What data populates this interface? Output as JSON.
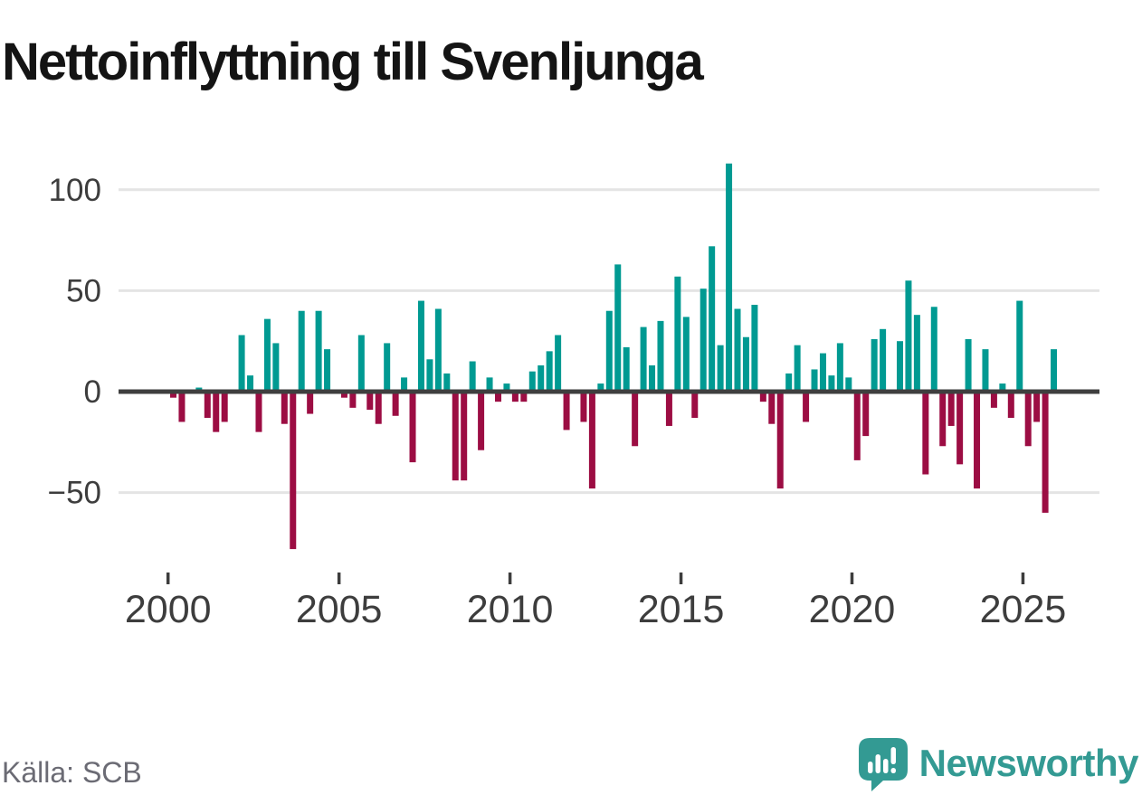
{
  "title": "Nettoinflyttning till Svenljunga",
  "footer": {
    "source": "Källa: SCB",
    "brand": "Newsworthy"
  },
  "icons": {
    "logo": "newsworthy-speech-bubble-bar-chart-icon"
  },
  "colors": {
    "positive": "#009a92",
    "negative": "#9c0d43",
    "grid": "#e4e4e4",
    "zero_line": "#3f3f3f",
    "axis_text": "#3d3d3d",
    "title_text": "#141414",
    "source_text": "#6b6b74",
    "brand_teal": "#339a93"
  },
  "chart_data": {
    "type": "bar",
    "title": "Nettoinflyttning till Svenljunga",
    "xlabel": "",
    "ylabel": "",
    "x_unit": "quarter",
    "grid": true,
    "legend": "none",
    "ylim": [
      -80,
      115
    ],
    "yticks": [
      100,
      50,
      0,
      -50
    ],
    "xticks": [
      2000,
      2005,
      2010,
      2015,
      2020,
      2025
    ],
    "categories": [
      "2000Q1",
      "2000Q2",
      "2000Q3",
      "2000Q4",
      "2001Q1",
      "2001Q2",
      "2001Q3",
      "2001Q4",
      "2002Q1",
      "2002Q2",
      "2002Q3",
      "2002Q4",
      "2003Q1",
      "2003Q2",
      "2003Q3",
      "2003Q4",
      "2004Q1",
      "2004Q2",
      "2004Q3",
      "2004Q4",
      "2005Q1",
      "2005Q2",
      "2005Q3",
      "2005Q4",
      "2006Q1",
      "2006Q2",
      "2006Q3",
      "2006Q4",
      "2007Q1",
      "2007Q2",
      "2007Q3",
      "2007Q4",
      "2008Q1",
      "2008Q2",
      "2008Q3",
      "2008Q4",
      "2009Q1",
      "2009Q2",
      "2009Q3",
      "2009Q4",
      "2010Q1",
      "2010Q2",
      "2010Q3",
      "2010Q4",
      "2011Q1",
      "2011Q2",
      "2011Q3",
      "2011Q4",
      "2012Q1",
      "2012Q2",
      "2012Q3",
      "2012Q4",
      "2013Q1",
      "2013Q2",
      "2013Q3",
      "2013Q4",
      "2014Q1",
      "2014Q2",
      "2014Q3",
      "2014Q4",
      "2015Q1",
      "2015Q2",
      "2015Q3",
      "2015Q4",
      "2016Q1",
      "2016Q2",
      "2016Q3",
      "2016Q4",
      "2017Q1",
      "2017Q2",
      "2017Q3",
      "2017Q4",
      "2018Q1",
      "2018Q2",
      "2018Q3",
      "2018Q4",
      "2019Q1",
      "2019Q2",
      "2019Q3",
      "2019Q4",
      "2020Q1",
      "2020Q2",
      "2020Q3",
      "2020Q4",
      "2021Q1",
      "2021Q2",
      "2021Q3",
      "2021Q4",
      "2022Q1",
      "2022Q2",
      "2022Q3",
      "2022Q4",
      "2023Q1",
      "2023Q2",
      "2023Q3",
      "2023Q4",
      "2024Q1",
      "2024Q2",
      "2024Q3",
      "2024Q4",
      "2025Q1",
      "2025Q2",
      "2025Q3",
      "2025Q4"
    ],
    "values": [
      -3,
      -15,
      0,
      2,
      -13,
      -20,
      -15,
      0,
      28,
      8,
      -20,
      36,
      24,
      -16,
      -78,
      40,
      -11,
      40,
      21,
      0,
      -3,
      -8,
      28,
      -9,
      -16,
      24,
      -12,
      7,
      -35,
      45,
      16,
      41,
      9,
      -44,
      -44,
      15,
      -29,
      7,
      -5,
      4,
      -5,
      -5,
      10,
      13,
      20,
      28,
      -19,
      0,
      -15,
      -48,
      4,
      40,
      63,
      22,
      -27,
      32,
      13,
      35,
      -17,
      57,
      37,
      -13,
      51,
      72,
      23,
      113,
      41,
      27,
      43,
      -5,
      -16,
      -48,
      9,
      23,
      -15,
      11,
      19,
      8,
      24,
      7,
      -34,
      -22,
      26,
      31,
      0,
      25,
      55,
      38,
      -41,
      42,
      -27,
      -17,
      -36,
      26,
      -48,
      21,
      -8,
      4,
      -13,
      45,
      -27,
      -15,
      -60,
      21
    ]
  }
}
